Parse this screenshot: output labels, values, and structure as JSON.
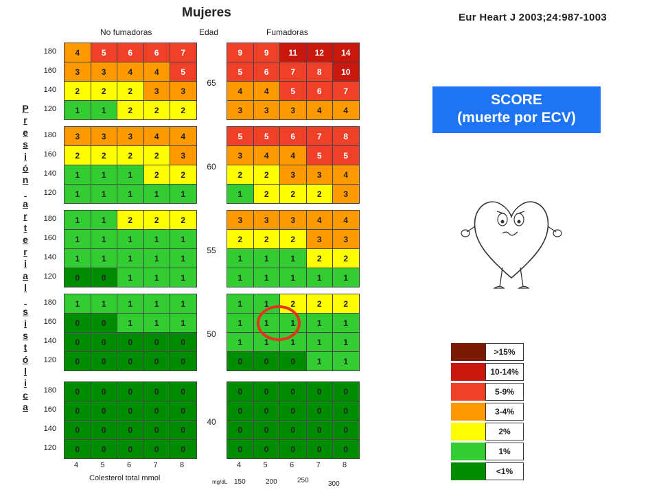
{
  "header": {
    "title": "Mujeres",
    "reference": "Eur Heart J 2003;24:987-1003",
    "left_group": "No fumadoras",
    "mid_group": "Edad",
    "right_group": "Fumadoras"
  },
  "score_box": {
    "line1": "SCORE",
    "line2": "(muerte por ECV)"
  },
  "y_axis_title": "Presión arterial sistólica",
  "chart_data": {
    "type": "heatmap",
    "title": "Mujeres",
    "xlabel": "Colesterol total  mmol",
    "x_unit_secondary": "mg/dL",
    "cholesterol_mmol": [
      "4",
      "5",
      "6",
      "7",
      "8"
    ],
    "cholesterol_mgdl": [
      "150",
      "200",
      "250",
      "300"
    ],
    "systolic_bp": [
      "180",
      "160",
      "140",
      "120"
    ],
    "groups": [
      "No fumadoras",
      "Fumadoras"
    ],
    "ages": [
      "65",
      "60",
      "55",
      "50",
      "40"
    ],
    "values": {
      "65": {
        "no_fumadoras": [
          [
            4,
            5,
            6,
            6,
            7
          ],
          [
            3,
            3,
            4,
            4,
            5
          ],
          [
            2,
            2,
            2,
            3,
            3
          ],
          [
            1,
            1,
            2,
            2,
            2
          ]
        ],
        "fumadoras": [
          [
            9,
            9,
            11,
            12,
            14
          ],
          [
            5,
            6,
            7,
            8,
            10
          ],
          [
            4,
            4,
            5,
            6,
            7
          ],
          [
            3,
            3,
            3,
            4,
            4
          ]
        ]
      },
      "60": {
        "no_fumadoras": [
          [
            3,
            3,
            3,
            4,
            4
          ],
          [
            2,
            2,
            2,
            2,
            3
          ],
          [
            1,
            1,
            1,
            2,
            2
          ],
          [
            1,
            1,
            1,
            1,
            1
          ]
        ],
        "fumadoras": [
          [
            5,
            5,
            6,
            7,
            8
          ],
          [
            3,
            4,
            4,
            5,
            5
          ],
          [
            2,
            2,
            3,
            3,
            4
          ],
          [
            1,
            2,
            2,
            2,
            3
          ]
        ]
      },
      "55": {
        "no_fumadoras": [
          [
            1,
            1,
            2,
            2,
            2
          ],
          [
            1,
            1,
            1,
            1,
            1
          ],
          [
            1,
            1,
            1,
            1,
            1
          ],
          [
            0,
            0,
            1,
            1,
            1
          ]
        ],
        "fumadoras": [
          [
            3,
            3,
            3,
            4,
            4
          ],
          [
            2,
            2,
            2,
            3,
            3
          ],
          [
            1,
            1,
            1,
            2,
            2
          ],
          [
            1,
            1,
            1,
            1,
            1
          ]
        ]
      },
      "50": {
        "no_fumadoras": [
          [
            1,
            1,
            1,
            1,
            1
          ],
          [
            0,
            0,
            1,
            1,
            1
          ],
          [
            0,
            0,
            0,
            0,
            0
          ],
          [
            0,
            0,
            0,
            0,
            0
          ]
        ],
        "fumadoras": [
          [
            1,
            1,
            2,
            2,
            2
          ],
          [
            1,
            1,
            1,
            1,
            1
          ],
          [
            1,
            1,
            1,
            1,
            1
          ],
          [
            0,
            0,
            0,
            1,
            1
          ]
        ]
      },
      "40": {
        "no_fumadoras": [
          [
            0,
            0,
            0,
            0,
            0
          ],
          [
            0,
            0,
            0,
            0,
            0
          ],
          [
            0,
            0,
            0,
            0,
            0
          ],
          [
            0,
            0,
            0,
            0,
            0
          ]
        ],
        "fumadoras": [
          [
            0,
            0,
            0,
            0,
            0
          ],
          [
            0,
            0,
            0,
            0,
            0
          ],
          [
            0,
            0,
            0,
            0,
            0
          ],
          [
            0,
            0,
            0,
            0,
            0
          ]
        ]
      }
    },
    "highlighted_cells": [
      {
        "age": "50",
        "group": "Fumadoras",
        "systolic_bp": "160",
        "cholesterol_mmol": "5"
      },
      {
        "age": "50",
        "group": "Fumadoras",
        "systolic_bp": "160",
        "cholesterol_mmol": "6"
      }
    ],
    "legend": [
      {
        "label": ">15%",
        "color": "#7a1a05"
      },
      {
        "label": "10-14%",
        "color": "#c8170d"
      },
      {
        "label": "5-9%",
        "color": "#f0402a"
      },
      {
        "label": "3-4%",
        "color": "#ff9900"
      },
      {
        "label": "2%",
        "color": "#ffff00"
      },
      {
        "label": "1%",
        "color": "#33cc33"
      },
      {
        "label": "<1%",
        "color": "#008c00"
      }
    ]
  }
}
